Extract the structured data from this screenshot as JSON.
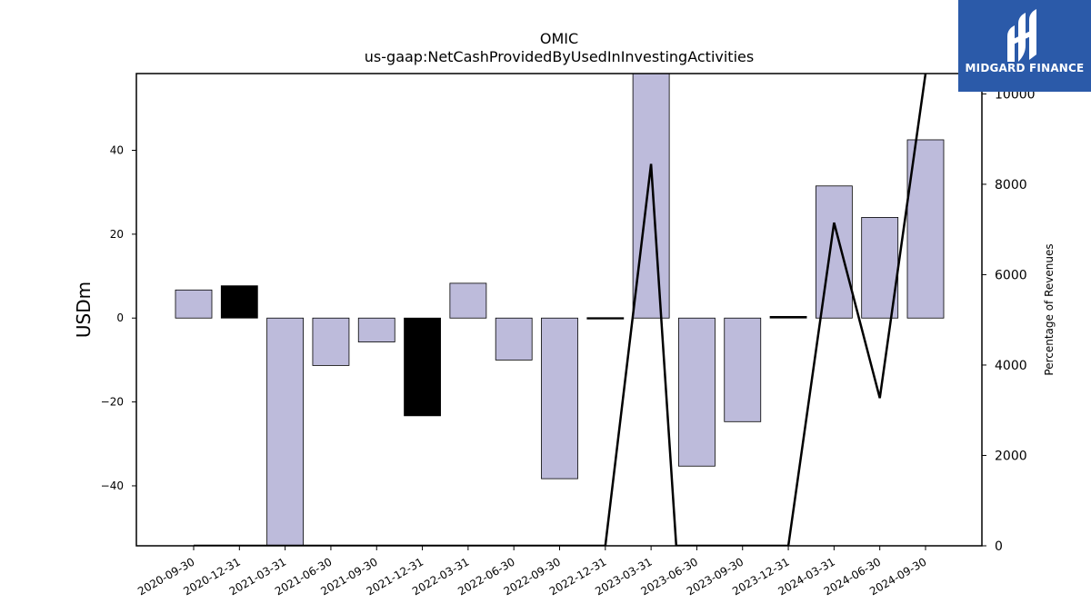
{
  "chart_data": {
    "type": "bar",
    "title": "OMIC",
    "subtitle": "us-gaap:NetCashProvidedByUsedInInvestingActivities",
    "ylabel": "USDm",
    "ylabel_right": "Percentage of Revenues",
    "ylim": [
      -54.3,
      58.3
    ],
    "ylim_right": [
      0,
      10450
    ],
    "yticks": [
      -40,
      -20,
      0,
      20,
      40
    ],
    "yticks_right": [
      0,
      2000,
      4000,
      6000,
      8000,
      10000
    ],
    "categories": [
      "2020-09-30",
      "2020-12-31",
      "2021-03-31",
      "2021-06-30",
      "2021-09-30",
      "2021-12-31",
      "2022-03-31",
      "2022-06-30",
      "2022-09-30",
      "2022-12-31",
      "2023-03-31",
      "2023-06-30",
      "2023-09-30",
      "2023-12-31",
      "2024-03-31",
      "2024-06-30",
      "2024-09-30"
    ],
    "series": [
      {
        "type": "bar",
        "values": [
          6.7,
          7.7,
          -54.3,
          -11.3,
          -5.7,
          -23.3,
          8.3,
          -10.0,
          -38.3,
          0.1,
          58.3,
          -35.3,
          -24.7,
          0.4,
          31.5,
          24.0,
          42.5
        ],
        "colors": [
          "#bdbbdb",
          "#000000",
          "#bdbbdb",
          "#bdbbdb",
          "#bdbbdb",
          "#000000",
          "#bdbbdb",
          "#bdbbdb",
          "#bdbbdb",
          "#000000",
          "#bdbbdb",
          "#bdbbdb",
          "#bdbbdb",
          "#000000",
          "#bdbbdb",
          "#bdbbdb",
          "#bdbbdb"
        ]
      },
      {
        "type": "line",
        "axis": "right",
        "color": "#000000",
        "x": [
          "2020-09-30",
          "2020-12-31",
          "2021-03-31",
          "2021-06-30",
          "2021-09-30",
          "2021-12-31",
          "2022-03-31",
          "2022-06-30",
          "2022-09-30",
          "2022-12-31",
          "2023-03-31",
          "2023-03-31+",
          "2023-12-31",
          "2024-03-31",
          "2024-06-30",
          "2024-09-30"
        ],
        "values": [
          0,
          0,
          0,
          0,
          0,
          0,
          0,
          0,
          0,
          0,
          8450,
          0,
          0,
          7150,
          3270,
          10450
        ]
      }
    ],
    "grid": false,
    "legend": "none"
  },
  "logo": {
    "text": "MIDGARD FINANCE",
    "color": "#2b5aa9"
  }
}
